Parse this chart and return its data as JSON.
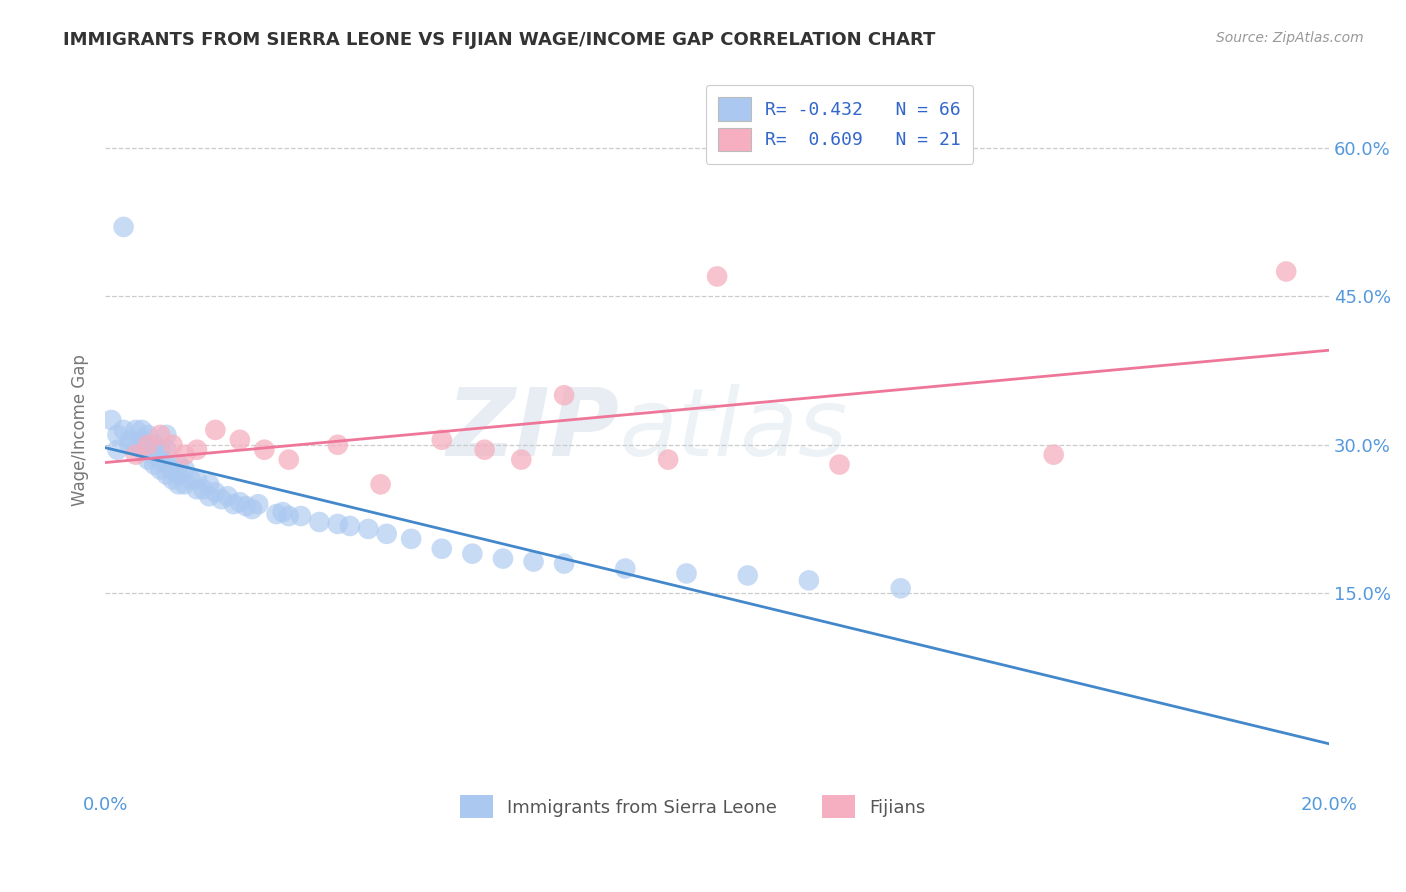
{
  "title": "IMMIGRANTS FROM SIERRA LEONE VS FIJIAN WAGE/INCOME GAP CORRELATION CHART",
  "source": "Source: ZipAtlas.com",
  "ylabel": "Wage/Income Gap",
  "xlim": [
    0.0,
    0.2
  ],
  "ylim": [
    -0.05,
    0.68
  ],
  "yticks": [
    0.15,
    0.3,
    0.45,
    0.6
  ],
  "ytick_labels": [
    "15.0%",
    "30.0%",
    "45.0%",
    "60.0%"
  ],
  "xticks": [
    0.0,
    0.2
  ],
  "xtick_labels": [
    "0.0%",
    "20.0%"
  ],
  "blue_R": -0.432,
  "blue_N": 66,
  "pink_R": 0.609,
  "pink_N": 21,
  "watermark_zip": "ZIP",
  "watermark_atlas": "atlas",
  "blue_color": "#aac8f0",
  "pink_color": "#f5afc0",
  "blue_line_color": "#4488cc",
  "pink_line_color": "#ee7799",
  "legend_blue_label": "Immigrants from Sierra Leone",
  "legend_pink_label": "Fijians",
  "tick_color": "#5599dd",
  "title_color": "#333333",
  "source_color": "#999999",
  "ylabel_color": "#777777",
  "blue_scatter": [
    [
      0.001,
      0.325
    ],
    [
      0.002,
      0.31
    ],
    [
      0.002,
      0.295
    ],
    [
      0.003,
      0.315
    ],
    [
      0.003,
      0.52
    ],
    [
      0.004,
      0.305
    ],
    [
      0.004,
      0.3
    ],
    [
      0.005,
      0.315
    ],
    [
      0.005,
      0.3
    ],
    [
      0.006,
      0.295
    ],
    [
      0.006,
      0.305
    ],
    [
      0.006,
      0.315
    ],
    [
      0.007,
      0.285
    ],
    [
      0.007,
      0.295
    ],
    [
      0.007,
      0.31
    ],
    [
      0.008,
      0.28
    ],
    [
      0.008,
      0.29
    ],
    [
      0.008,
      0.3
    ],
    [
      0.009,
      0.275
    ],
    [
      0.009,
      0.285
    ],
    [
      0.009,
      0.295
    ],
    [
      0.01,
      0.27
    ],
    [
      0.01,
      0.28
    ],
    [
      0.01,
      0.295
    ],
    [
      0.01,
      0.31
    ],
    [
      0.011,
      0.265
    ],
    [
      0.011,
      0.275
    ],
    [
      0.012,
      0.26
    ],
    [
      0.012,
      0.27
    ],
    [
      0.012,
      0.28
    ],
    [
      0.013,
      0.26
    ],
    [
      0.013,
      0.275
    ],
    [
      0.014,
      0.265
    ],
    [
      0.015,
      0.255
    ],
    [
      0.015,
      0.265
    ],
    [
      0.016,
      0.255
    ],
    [
      0.017,
      0.248
    ],
    [
      0.017,
      0.26
    ],
    [
      0.018,
      0.252
    ],
    [
      0.019,
      0.245
    ],
    [
      0.02,
      0.248
    ],
    [
      0.021,
      0.24
    ],
    [
      0.022,
      0.242
    ],
    [
      0.023,
      0.238
    ],
    [
      0.024,
      0.235
    ],
    [
      0.025,
      0.24
    ],
    [
      0.028,
      0.23
    ],
    [
      0.029,
      0.232
    ],
    [
      0.03,
      0.228
    ],
    [
      0.032,
      0.228
    ],
    [
      0.035,
      0.222
    ],
    [
      0.038,
      0.22
    ],
    [
      0.04,
      0.218
    ],
    [
      0.043,
      0.215
    ],
    [
      0.046,
      0.21
    ],
    [
      0.05,
      0.205
    ],
    [
      0.055,
      0.195
    ],
    [
      0.06,
      0.19
    ],
    [
      0.065,
      0.185
    ],
    [
      0.07,
      0.182
    ],
    [
      0.075,
      0.18
    ],
    [
      0.085,
      0.175
    ],
    [
      0.095,
      0.17
    ],
    [
      0.105,
      0.168
    ],
    [
      0.115,
      0.163
    ],
    [
      0.13,
      0.155
    ]
  ],
  "pink_scatter": [
    [
      0.005,
      0.29
    ],
    [
      0.007,
      0.3
    ],
    [
      0.009,
      0.31
    ],
    [
      0.011,
      0.3
    ],
    [
      0.013,
      0.29
    ],
    [
      0.015,
      0.295
    ],
    [
      0.018,
      0.315
    ],
    [
      0.022,
      0.305
    ],
    [
      0.026,
      0.295
    ],
    [
      0.03,
      0.285
    ],
    [
      0.038,
      0.3
    ],
    [
      0.045,
      0.26
    ],
    [
      0.055,
      0.305
    ],
    [
      0.062,
      0.295
    ],
    [
      0.068,
      0.285
    ],
    [
      0.075,
      0.35
    ],
    [
      0.092,
      0.285
    ],
    [
      0.1,
      0.47
    ],
    [
      0.12,
      0.28
    ],
    [
      0.155,
      0.29
    ],
    [
      0.193,
      0.475
    ]
  ]
}
